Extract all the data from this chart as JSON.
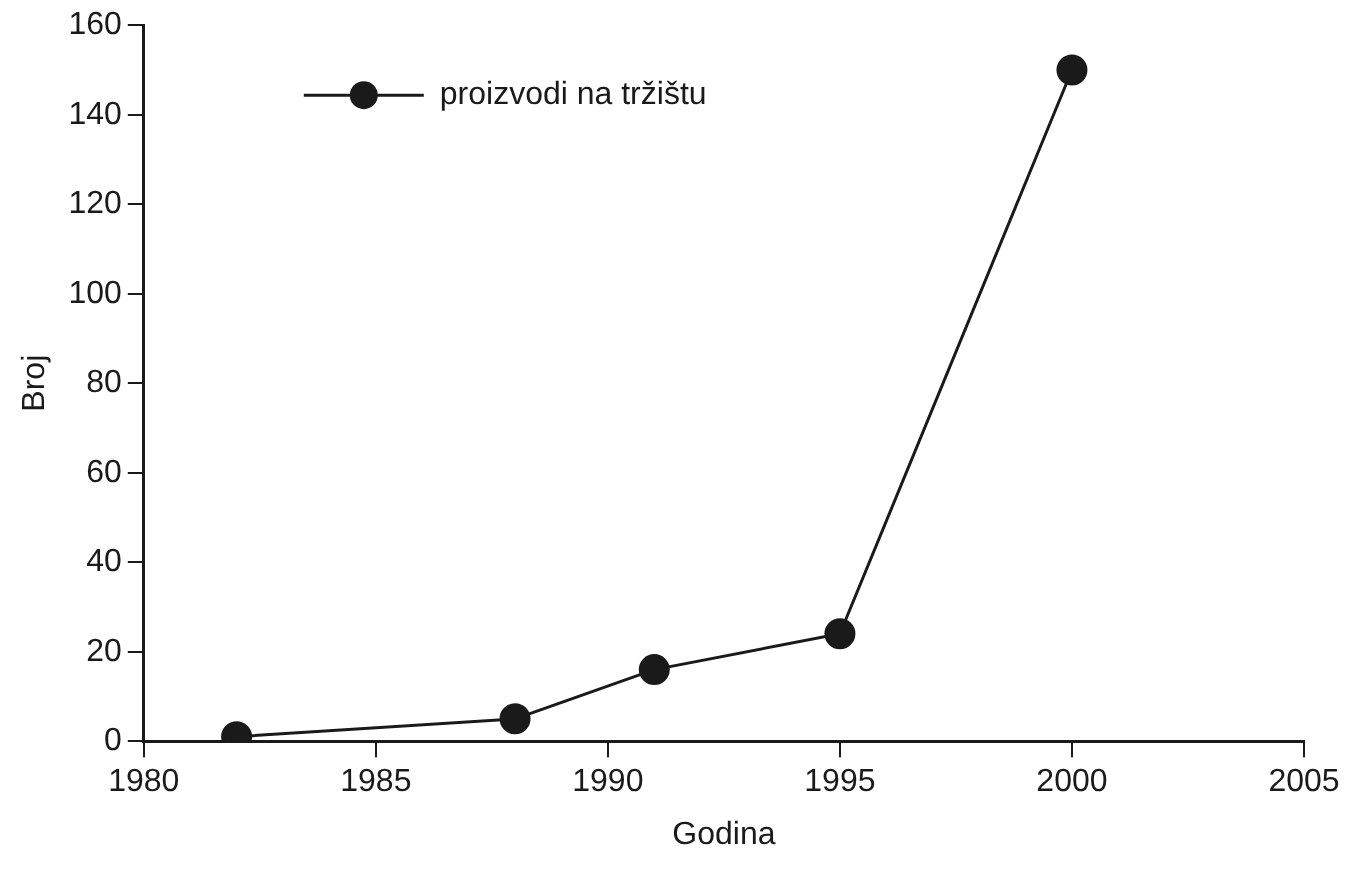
{
  "chart_data": {
    "type": "line",
    "xlabel": "Godina",
    "ylabel": "Broj",
    "x": [
      1982,
      1988,
      1991,
      1995,
      2000
    ],
    "series": [
      {
        "name": "proizvodi na tržištu",
        "color": "#1a1a1a",
        "values": [
          1,
          5,
          16,
          24,
          150
        ]
      }
    ],
    "xlim": [
      1980,
      2005
    ],
    "xticks": [
      1980,
      1985,
      1990,
      1995,
      2000,
      2005
    ],
    "ylim": [
      0,
      160
    ],
    "yticks": [
      0,
      20,
      40,
      60,
      80,
      100,
      120,
      140,
      160
    ],
    "grid": false,
    "legend": "top left",
    "marker": "circle",
    "line_style": "solid"
  }
}
